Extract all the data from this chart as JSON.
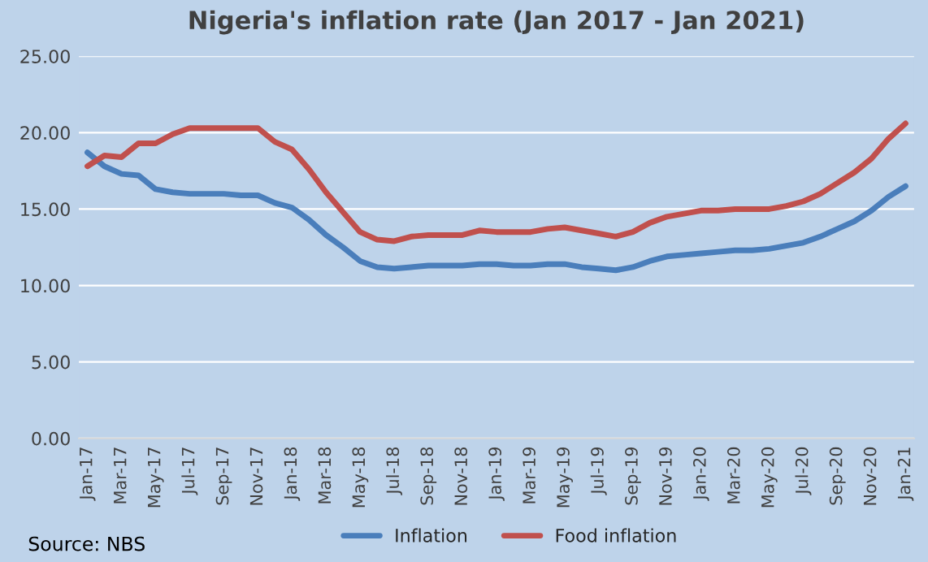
{
  "chart_data": {
    "type": "line",
    "title": "Nigeria's inflation rate (Jan 2017 - Jan 2021)",
    "categories": [
      "Jan-17",
      null,
      "Mar-17",
      null,
      "May-17",
      null,
      "Jul-17",
      null,
      "Sep-17",
      null,
      "Nov-17",
      null,
      "Jan-18",
      null,
      "Mar-18",
      null,
      "May-18",
      null,
      "Jul-18",
      null,
      "Sep-18",
      null,
      "Nov-18",
      null,
      "Jan-19",
      null,
      "Mar-19",
      null,
      "May-19",
      null,
      "Jul-19",
      null,
      "Sep-19",
      null,
      "Nov-19",
      null,
      "Jan-20",
      null,
      "Mar-20",
      null,
      "May-20",
      null,
      "Jul-20",
      null,
      "Sep-20",
      null,
      "Nov-20",
      null,
      "Jan-21"
    ],
    "series": [
      {
        "name": "Inflation",
        "color": "#4a7ebb",
        "values": [
          18.7,
          17.8,
          17.3,
          17.2,
          16.3,
          16.1,
          16.0,
          16.0,
          16.0,
          15.9,
          15.9,
          15.4,
          15.1,
          14.3,
          13.3,
          12.5,
          11.6,
          11.2,
          11.1,
          11.2,
          11.3,
          11.3,
          11.3,
          11.4,
          11.4,
          11.3,
          11.3,
          11.4,
          11.4,
          11.2,
          11.1,
          11.0,
          11.2,
          11.6,
          11.9,
          12.0,
          12.1,
          12.2,
          12.3,
          12.3,
          12.4,
          12.6,
          12.8,
          13.2,
          13.7,
          14.2,
          14.9,
          15.8,
          16.5
        ]
      },
      {
        "name": "Food inflation",
        "color": "#c0504d",
        "values": [
          17.8,
          18.5,
          18.4,
          19.3,
          19.3,
          19.9,
          20.3,
          20.3,
          20.3,
          20.3,
          20.3,
          19.4,
          18.9,
          17.6,
          16.1,
          14.8,
          13.5,
          13.0,
          12.9,
          13.2,
          13.3,
          13.3,
          13.3,
          13.6,
          13.5,
          13.5,
          13.5,
          13.7,
          13.8,
          13.6,
          13.4,
          13.2,
          13.5,
          14.1,
          14.5,
          14.7,
          14.9,
          14.9,
          15.0,
          15.0,
          15.0,
          15.2,
          15.5,
          16.0,
          16.7,
          17.4,
          18.3,
          19.6,
          20.6
        ]
      }
    ],
    "ylim": [
      0,
      25
    ],
    "yticks": [
      {
        "value": 0,
        "label": "0.00"
      },
      {
        "value": 5,
        "label": "5.00"
      },
      {
        "value": 10,
        "label": "10.00"
      },
      {
        "value": 15,
        "label": "15.00"
      },
      {
        "value": 20,
        "label": "20.00"
      },
      {
        "value": 25,
        "label": "25.00"
      }
    ],
    "grid": "y",
    "legend": "bottom",
    "marker": "none",
    "line_style": "solid",
    "annotations": [
      "Source: NBS"
    ]
  }
}
